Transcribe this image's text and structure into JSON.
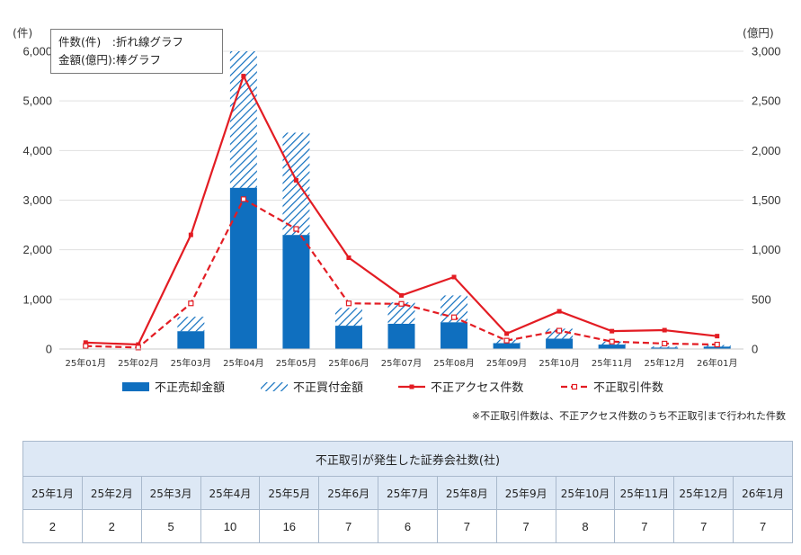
{
  "info_box": {
    "line1": "件数(件)　:折れ線グラフ",
    "line2": "金額(億円):棒グラフ"
  },
  "units": {
    "left": "(件)",
    "right": "(億円)"
  },
  "note": "※不正取引件数は、不正アクセス件数のうち不正取引まで行われた件数",
  "colors": {
    "solid": "#0f6fbf",
    "hatch": "#0f6fbf",
    "line": "#e31c23"
  },
  "chart_data": {
    "type": "bar+line",
    "categories": [
      "25年01月",
      "25年02月",
      "25年03月",
      "25年04月",
      "25年05月",
      "25年06月",
      "25年07月",
      "25年08月",
      "25年09月",
      "25年10月",
      "25年11月",
      "25年12月",
      "26年01月"
    ],
    "y_left": {
      "label": "(件)",
      "lim": [
        0,
        6000
      ],
      "ticks": [
        "0",
        "1,000",
        "2,000",
        "3,000",
        "4,000",
        "5,000",
        "6,000"
      ]
    },
    "y_right": {
      "label": "(億円)",
      "lim": [
        0,
        3000
      ],
      "ticks": [
        "0",
        "500",
        "1,000",
        "1,500",
        "2,000",
        "2,500",
        "3,000"
      ]
    },
    "bars": [
      {
        "name": "不正売却金額",
        "axis": "right",
        "style": "solid",
        "values": [
          0,
          0,
          180,
          1625,
          1150,
          235,
          255,
          270,
          60,
          105,
          45,
          15,
          25
        ]
      },
      {
        "name": "不正買付金額",
        "axis": "right",
        "style": "hatch",
        "values": [
          0,
          0,
          145,
          1375,
          1030,
          180,
          215,
          270,
          35,
          100,
          30,
          10,
          15
        ]
      }
    ],
    "lines": [
      {
        "name": "不正アクセス件数",
        "axis": "left",
        "style": "solid",
        "values": [
          130,
          90,
          2300,
          5500,
          3400,
          1840,
          1080,
          1450,
          310,
          760,
          360,
          380,
          260
        ]
      },
      {
        "name": "不正取引件数",
        "axis": "left",
        "style": "dashed",
        "values": [
          60,
          30,
          920,
          3020,
          2420,
          920,
          910,
          640,
          170,
          370,
          150,
          110,
          90
        ]
      }
    ],
    "legend": [
      "不正売却金額",
      "不正買付金額",
      "不正アクセス件数",
      "不正取引件数"
    ]
  },
  "table": {
    "title": "不正取引が発生した証券会社数(社)",
    "months": [
      "25年1月",
      "25年2月",
      "25年3月",
      "25年4月",
      "25年5月",
      "25年6月",
      "25年7月",
      "25年8月",
      "25年9月",
      "25年10月",
      "25年11月",
      "25年12月",
      "26年1月"
    ],
    "values": [
      "2",
      "2",
      "5",
      "10",
      "16",
      "7",
      "6",
      "7",
      "7",
      "8",
      "7",
      "7",
      "7"
    ]
  }
}
